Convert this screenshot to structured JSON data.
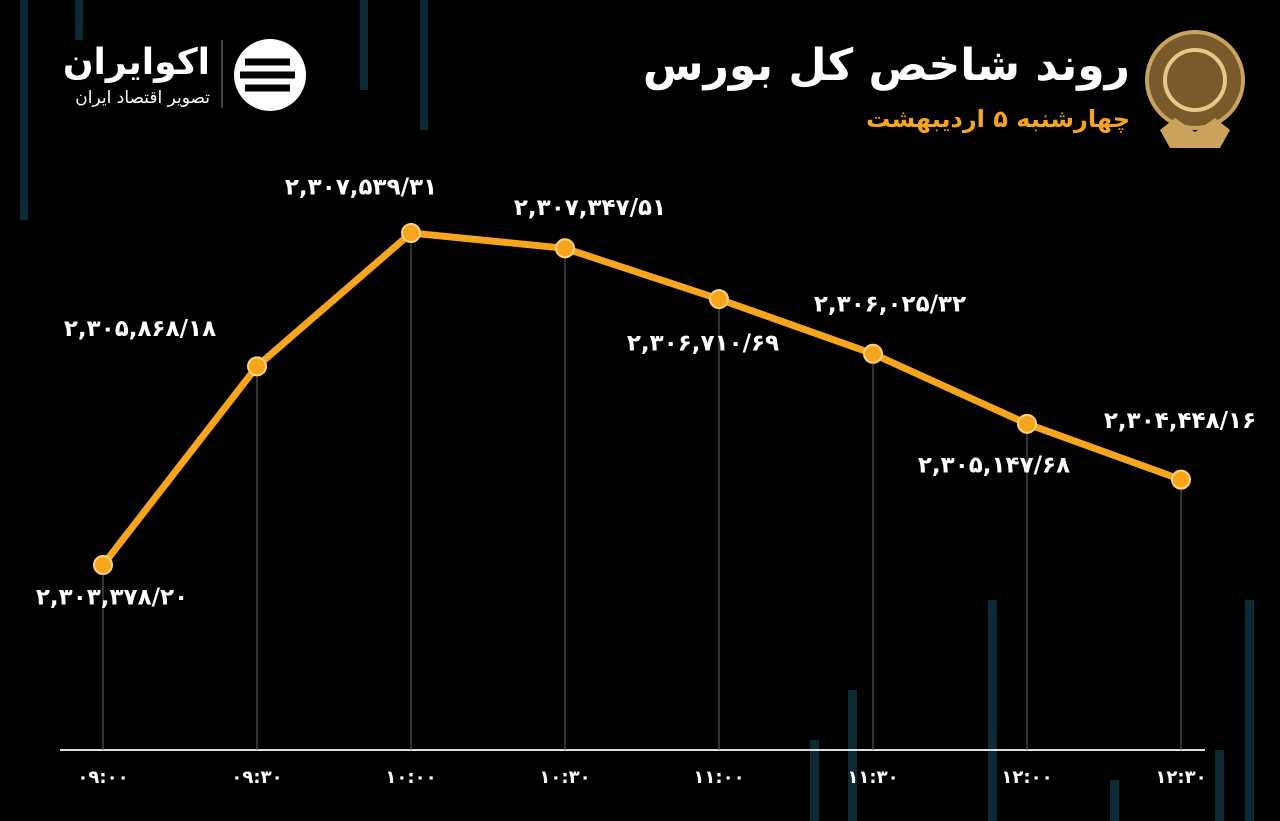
{
  "chart_data": {
    "type": "line",
    "title": "روند شاخص کل بورس",
    "subtitle": "چهارشنبه ۵ اردیبهشت",
    "categories": [
      "۰۹:۰۰",
      "۰۹:۳۰",
      "۱۰:۰۰",
      "۱۰:۳۰",
      "۱۱:۰۰",
      "۱۱:۳۰",
      "۱۲:۰۰",
      "۱۲:۳۰"
    ],
    "values": [
      2303378.2,
      2305868.18,
      2307539.31,
      2307347.51,
      2306710.69,
      2306025.32,
      2305147.68,
      2304448.16
    ],
    "value_labels": [
      "۲,۳۰۳,۳۷۸/۲۰",
      "۲,۳۰۵,۸۶۸/۱۸",
      "۲,۳۰۷,۵۳۹/۳۱",
      "۲,۳۰۷,۳۴۷/۵۱",
      "۲,۳۰۶,۷۱۰/۶۹",
      "۲,۳۰۶,۰۲۵/۳۲",
      "۲,۳۰۵,۱۴۷/۶۸",
      "۲,۳۰۴,۴۴۸/۱۶"
    ],
    "color": "#f7a51c"
  },
  "brand": {
    "name": "اکوایران",
    "tagline": "تصویر اقتصاد ایران"
  }
}
